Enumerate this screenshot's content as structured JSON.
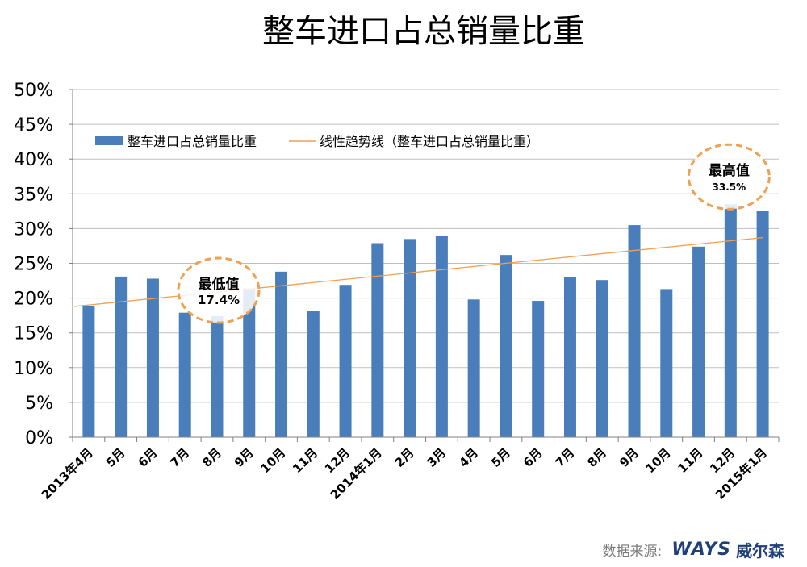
{
  "chart_data": {
    "type": "bar",
    "title": "整车进口占总销量比重",
    "categories": [
      "2013年4月",
      "5月",
      "6月",
      "7月",
      "8月",
      "9月",
      "10月",
      "11月",
      "12月",
      "2014年1月",
      "2月",
      "3月",
      "4月",
      "5月",
      "6月",
      "7月",
      "8月",
      "9月",
      "10月",
      "11月",
      "12月",
      "2015年1月"
    ],
    "series": [
      {
        "name": "整车进口占总销量比重",
        "values": [
          18.9,
          23.1,
          22.8,
          17.9,
          17.4,
          21.4,
          23.8,
          18.1,
          21.9,
          27.9,
          28.5,
          29.0,
          19.8,
          26.2,
          19.6,
          23.0,
          22.6,
          30.5,
          21.3,
          27.4,
          33.5,
          32.6
        ],
        "color": "#4a7ebb"
      }
    ],
    "trendline": {
      "name": "线性趋势线（整车进口占总销量比重）",
      "type": "linear",
      "start": 18.8,
      "end": 28.7,
      "color": "#f0a050"
    },
    "yticks": [
      "0%",
      "5%",
      "10%",
      "15%",
      "20%",
      "25%",
      "30%",
      "35%",
      "40%",
      "45%",
      "50%"
    ],
    "ylim": [
      0,
      50
    ],
    "grid": true,
    "legend": "top-left",
    "annotations": [
      {
        "label": "最低值",
        "value_text": "17.4%",
        "category_index": 4
      },
      {
        "label": "最高值",
        "value_text": "33.5%",
        "category_index": 20
      }
    ]
  },
  "source": {
    "label": "数据来源:",
    "logo_en": "WAYS",
    "logo_cn": "威尔森"
  }
}
